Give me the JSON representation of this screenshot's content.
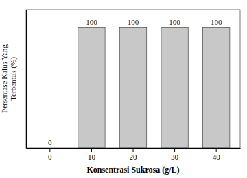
{
  "chart_data": {
    "type": "bar",
    "x_label": "Konsentrasi Sukrosa (g/L)",
    "y_label": "Persentase Kalus Yang\nTerbentuk (%)",
    "categories": [
      "0",
      "10",
      "20",
      "30",
      "40"
    ],
    "values": [
      0,
      100,
      100,
      100,
      100
    ],
    "color": "#c8c8c8",
    "ylim": [
      0,
      115
    ],
    "grid": false,
    "data_labels": true,
    "tick_labels": "x"
  }
}
